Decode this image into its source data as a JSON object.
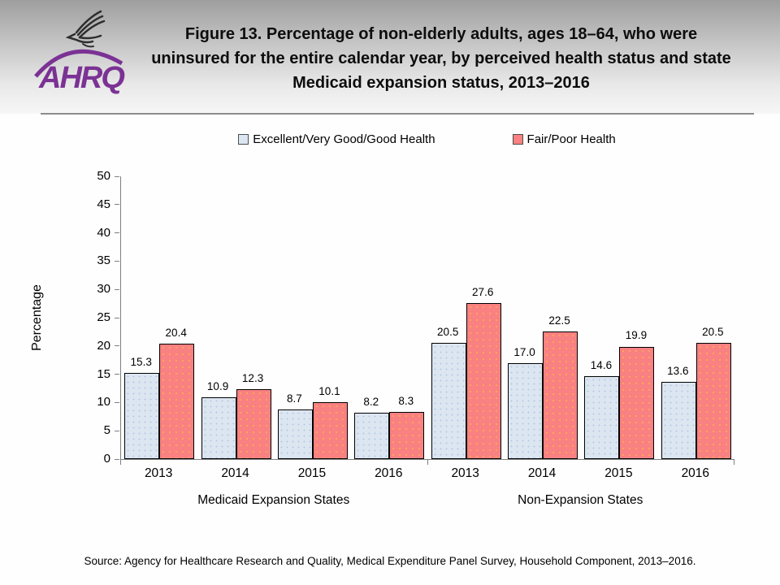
{
  "header": {
    "title": "Figure 13. Percentage of non-elderly adults, ages 18–64, who were uninsured for the entire calendar year, by perceived health status and state Medicaid expansion status, 2013–2016",
    "logo_text": "AHRQ"
  },
  "legend": {
    "items": [
      {
        "label": "Excellent/Very Good/Good Health",
        "color": "#dce6f1"
      },
      {
        "label": "Fair/Poor Health",
        "color": "#f98181"
      }
    ]
  },
  "chart_data": {
    "type": "bar",
    "title": "Percentage of non-elderly adults, ages 18–64, uninsured entire calendar year, by perceived health status and state Medicaid expansion status, 2013–2016",
    "xlabel": "",
    "ylabel": "Percentage",
    "ylim": [
      0,
      50
    ],
    "ytick_step": 5,
    "grid": false,
    "legend_position": "top",
    "categories": [
      "2013",
      "2014",
      "2015",
      "2016",
      "2013",
      "2014",
      "2015",
      "2016"
    ],
    "sections": [
      {
        "label": "Medicaid Expansion States",
        "category_span": [
          0,
          3
        ]
      },
      {
        "label": "Non-Expansion States",
        "category_span": [
          4,
          7
        ]
      }
    ],
    "series": [
      {
        "name": "Excellent/Very Good/Good Health",
        "color": "#dce6f1",
        "values": [
          15.3,
          10.9,
          8.7,
          8.2,
          20.5,
          17.0,
          14.6,
          13.6
        ]
      },
      {
        "name": "Fair/Poor Health",
        "color": "#f98181",
        "values": [
          20.4,
          12.3,
          10.1,
          8.3,
          27.6,
          22.5,
          19.9,
          20.5
        ]
      }
    ]
  },
  "colors": {
    "series1": "#dce6f1",
    "series2": "#f98181",
    "axis": "#7f7f7f",
    "brand_purple": "#7b3294"
  },
  "source": "Source: Agency for Healthcare Research and Quality, Medical Expenditure Panel Survey, Household Component, 2013–2016."
}
